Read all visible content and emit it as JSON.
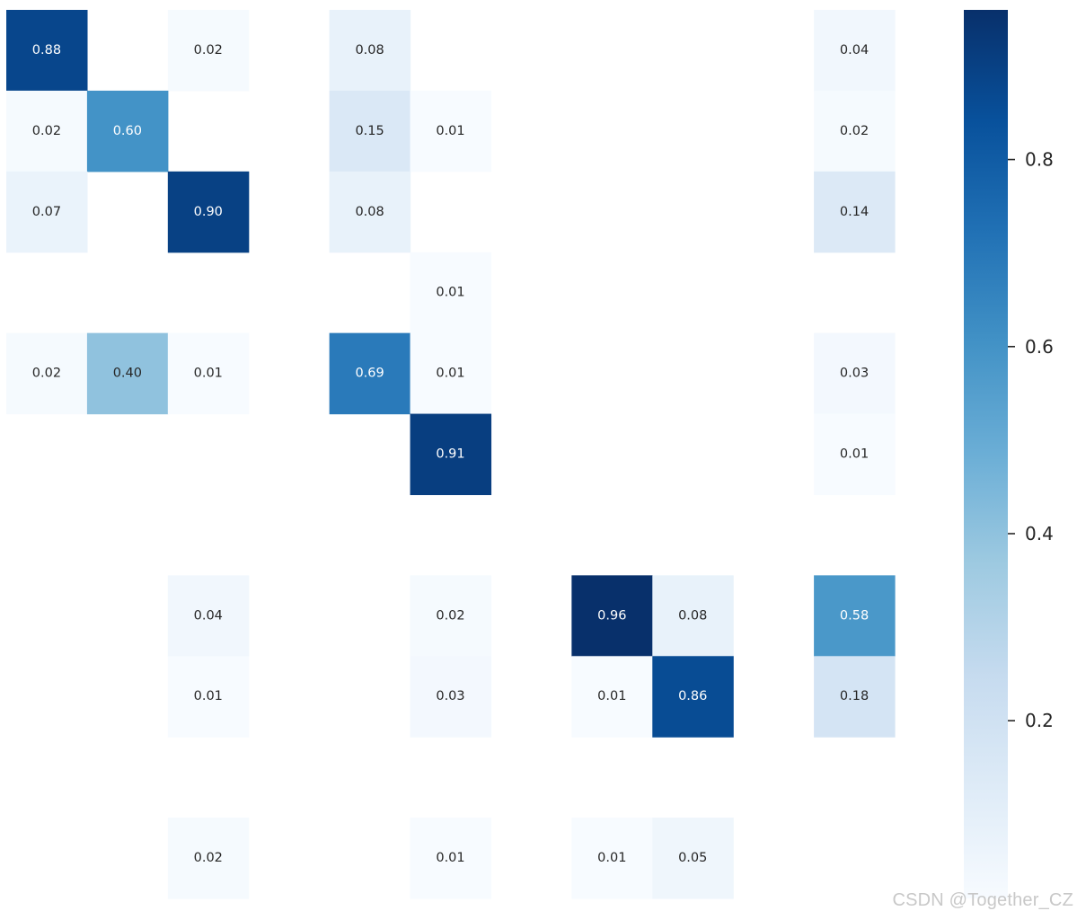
{
  "chart_data": {
    "type": "heatmap",
    "colormap": "Blues",
    "value_range": [
      0.01,
      0.96
    ],
    "n_rows": 11,
    "n_cols": 11,
    "cells": [
      {
        "row": 0,
        "col": 0,
        "value": 0.88,
        "label": "0.88"
      },
      {
        "row": 0,
        "col": 2,
        "value": 0.02,
        "label": "0.02"
      },
      {
        "row": 0,
        "col": 4,
        "value": 0.08,
        "label": "0.08"
      },
      {
        "row": 0,
        "col": 10,
        "value": 0.04,
        "label": "0.04"
      },
      {
        "row": 1,
        "col": 0,
        "value": 0.02,
        "label": "0.02"
      },
      {
        "row": 1,
        "col": 1,
        "value": 0.6,
        "label": "0.60"
      },
      {
        "row": 1,
        "col": 4,
        "value": 0.15,
        "label": "0.15"
      },
      {
        "row": 1,
        "col": 5,
        "value": 0.01,
        "label": "0.01"
      },
      {
        "row": 1,
        "col": 10,
        "value": 0.02,
        "label": "0.02"
      },
      {
        "row": 2,
        "col": 0,
        "value": 0.07,
        "label": "0.07"
      },
      {
        "row": 2,
        "col": 2,
        "value": 0.9,
        "label": "0.90"
      },
      {
        "row": 2,
        "col": 4,
        "value": 0.08,
        "label": "0.08"
      },
      {
        "row": 2,
        "col": 10,
        "value": 0.14,
        "label": "0.14"
      },
      {
        "row": 3,
        "col": 5,
        "value": 0.01,
        "label": "0.01"
      },
      {
        "row": 4,
        "col": 0,
        "value": 0.02,
        "label": "0.02"
      },
      {
        "row": 4,
        "col": 1,
        "value": 0.4,
        "label": "0.40"
      },
      {
        "row": 4,
        "col": 2,
        "value": 0.01,
        "label": "0.01"
      },
      {
        "row": 4,
        "col": 4,
        "value": 0.69,
        "label": "0.69"
      },
      {
        "row": 4,
        "col": 5,
        "value": 0.01,
        "label": "0.01"
      },
      {
        "row": 4,
        "col": 10,
        "value": 0.03,
        "label": "0.03"
      },
      {
        "row": 5,
        "col": 5,
        "value": 0.91,
        "label": "0.91"
      },
      {
        "row": 5,
        "col": 10,
        "value": 0.01,
        "label": "0.01"
      },
      {
        "row": 7,
        "col": 2,
        "value": 0.04,
        "label": "0.04"
      },
      {
        "row": 7,
        "col": 5,
        "value": 0.02,
        "label": "0.02"
      },
      {
        "row": 7,
        "col": 7,
        "value": 0.96,
        "label": "0.96"
      },
      {
        "row": 7,
        "col": 8,
        "value": 0.08,
        "label": "0.08"
      },
      {
        "row": 7,
        "col": 10,
        "value": 0.58,
        "label": "0.58"
      },
      {
        "row": 8,
        "col": 2,
        "value": 0.01,
        "label": "0.01"
      },
      {
        "row": 8,
        "col": 5,
        "value": 0.03,
        "label": "0.03"
      },
      {
        "row": 8,
        "col": 7,
        "value": 0.01,
        "label": "0.01"
      },
      {
        "row": 8,
        "col": 8,
        "value": 0.86,
        "label": "0.86"
      },
      {
        "row": 8,
        "col": 10,
        "value": 0.18,
        "label": "0.18"
      },
      {
        "row": 10,
        "col": 2,
        "value": 0.02,
        "label": "0.02"
      },
      {
        "row": 10,
        "col": 5,
        "value": 0.01,
        "label": "0.01"
      },
      {
        "row": 10,
        "col": 7,
        "value": 0.01,
        "label": "0.01"
      },
      {
        "row": 10,
        "col": 8,
        "value": 0.05,
        "label": "0.05"
      }
    ],
    "colorbar": {
      "ticks": [
        0.8,
        0.6,
        0.4,
        0.2
      ],
      "tick_labels": [
        "0.8",
        "0.6",
        "0.4",
        "0.2"
      ]
    },
    "title": "",
    "xlabel": "",
    "ylabel": ""
  },
  "watermark": "CSDN @Together_CZ"
}
